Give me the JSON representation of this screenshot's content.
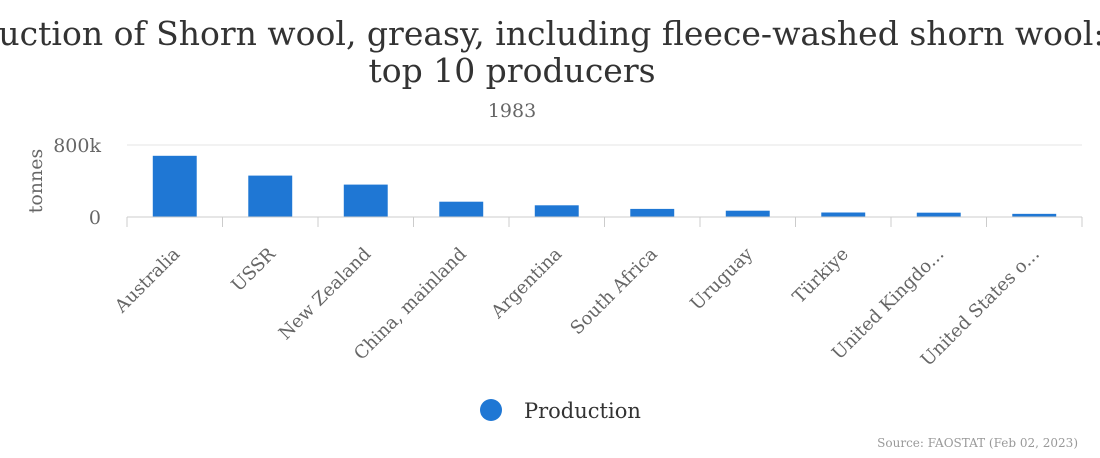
{
  "chart_data": {
    "type": "bar",
    "title_line1": "Production of Shorn wool, greasy, including fleece-washed shorn wool:",
    "title_line2": "top 10 producers",
    "subtitle": "1983",
    "ylabel": "tonnes",
    "y_ticks": [
      "0",
      "800k"
    ],
    "ylim": [
      0,
      800000
    ],
    "grid": true,
    "categories": [
      "Australia",
      "USSR",
      "New Zealand",
      "China, mainland",
      "Argentina",
      "South Africa",
      "Uruguay",
      "Türkiye",
      "United Kingdo...",
      "United States o..."
    ],
    "series": [
      {
        "name": "Production",
        "color": "#1f77d4",
        "values": [
          680000,
          460000,
          360000,
          170000,
          130000,
          90000,
          70000,
          50000,
          48000,
          35000
        ]
      }
    ],
    "legend_position": "bottom",
    "credit": "Source: FAOSTAT (Feb 02, 2023)"
  }
}
